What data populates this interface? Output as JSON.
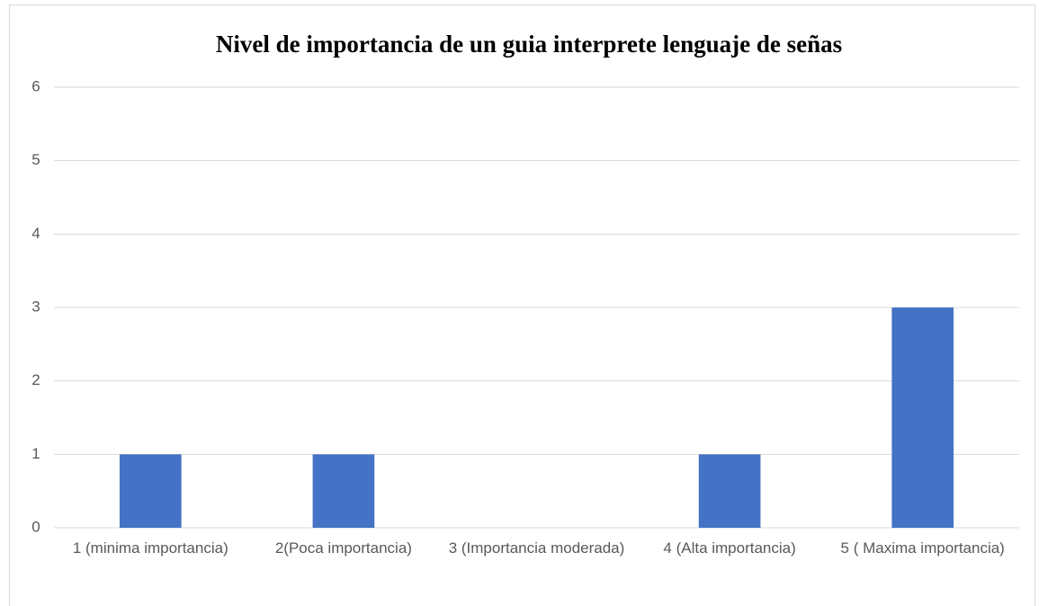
{
  "chart_data": {
    "type": "bar",
    "title": "Nivel de importancia de un guia interprete lenguaje de señas",
    "categories": [
      "1 (minima importancia)",
      "2(Poca importancia)",
      "3 (Importancia moderada)",
      "4 (Alta importancia)",
      "5 ( Maxima importancia)"
    ],
    "values": [
      1,
      1,
      0,
      1,
      3
    ],
    "color": "#4472c4",
    "ylim": [
      0,
      6
    ],
    "yticks": [
      0,
      1,
      2,
      3,
      4,
      5,
      6
    ],
    "grid": true
  }
}
